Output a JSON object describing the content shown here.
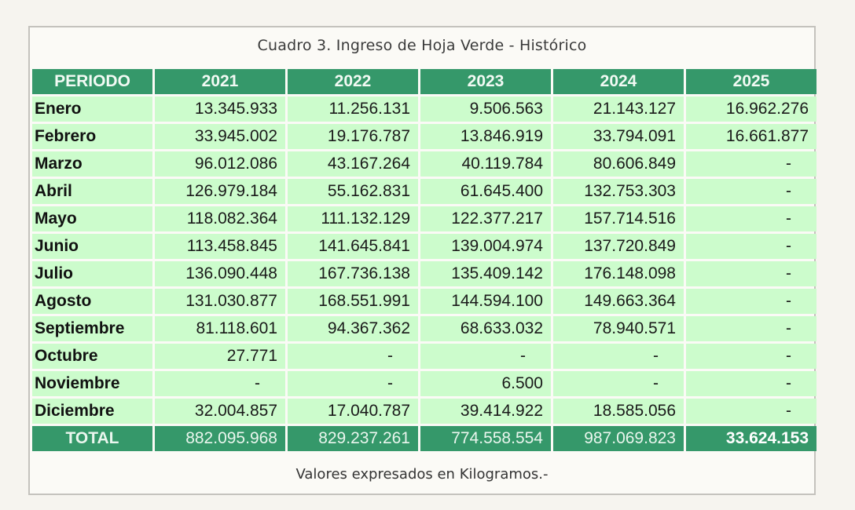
{
  "table": {
    "caption": "Cuadro 3. Ingreso de Hoja Verde - Histórico",
    "headers": [
      "PERIODO",
      "2021",
      "2022",
      "2023",
      "2024",
      "2025"
    ],
    "rows": [
      {
        "label": "Enero",
        "values": [
          "13.345.933",
          "11.256.131",
          "9.506.563",
          "21.143.127",
          "16.962.276"
        ]
      },
      {
        "label": "Febrero",
        "values": [
          "33.945.002",
          "19.176.787",
          "13.846.919",
          "33.794.091",
          "16.661.877"
        ]
      },
      {
        "label": "Marzo",
        "values": [
          "96.012.086",
          "43.167.264",
          "40.119.784",
          "80.606.849",
          "-"
        ]
      },
      {
        "label": "Abril",
        "values": [
          "126.979.184",
          "55.162.831",
          "61.645.400",
          "132.753.303",
          "-"
        ]
      },
      {
        "label": "Mayo",
        "values": [
          "118.082.364",
          "111.132.129",
          "122.377.217",
          "157.714.516",
          "-"
        ]
      },
      {
        "label": "Junio",
        "values": [
          "113.458.845",
          "141.645.841",
          "139.004.974",
          "137.720.849",
          "-"
        ]
      },
      {
        "label": "Julio",
        "values": [
          "136.090.448",
          "167.736.138",
          "135.409.142",
          "176.148.098",
          "-"
        ]
      },
      {
        "label": "Agosto",
        "values": [
          "131.030.877",
          "168.551.991",
          "144.594.100",
          "149.663.364",
          "-"
        ]
      },
      {
        "label": "Septiembre",
        "values": [
          "81.118.601",
          "94.367.362",
          "68.633.032",
          "78.940.571",
          "-"
        ]
      },
      {
        "label": "Octubre",
        "values": [
          "27.771",
          "-",
          "-",
          "-",
          "-"
        ]
      },
      {
        "label": "Noviembre",
        "values": [
          "-",
          "-",
          "6.500",
          "-",
          "-"
        ]
      },
      {
        "label": "Diciembre",
        "values": [
          "32.004.857",
          "17.040.787",
          "39.414.922",
          "18.585.056",
          "-"
        ]
      }
    ],
    "total": {
      "label": "TOTAL",
      "values": [
        "882.095.968",
        "829.237.261",
        "774.558.554",
        "987.069.823",
        "33.624.153"
      ]
    },
    "footnote": "Valores expresados en Kilogramos.-"
  },
  "colors": {
    "header_green": "#35986a",
    "cell_light_green": "#ccfccc",
    "frame_border": "#c4c2bd"
  }
}
